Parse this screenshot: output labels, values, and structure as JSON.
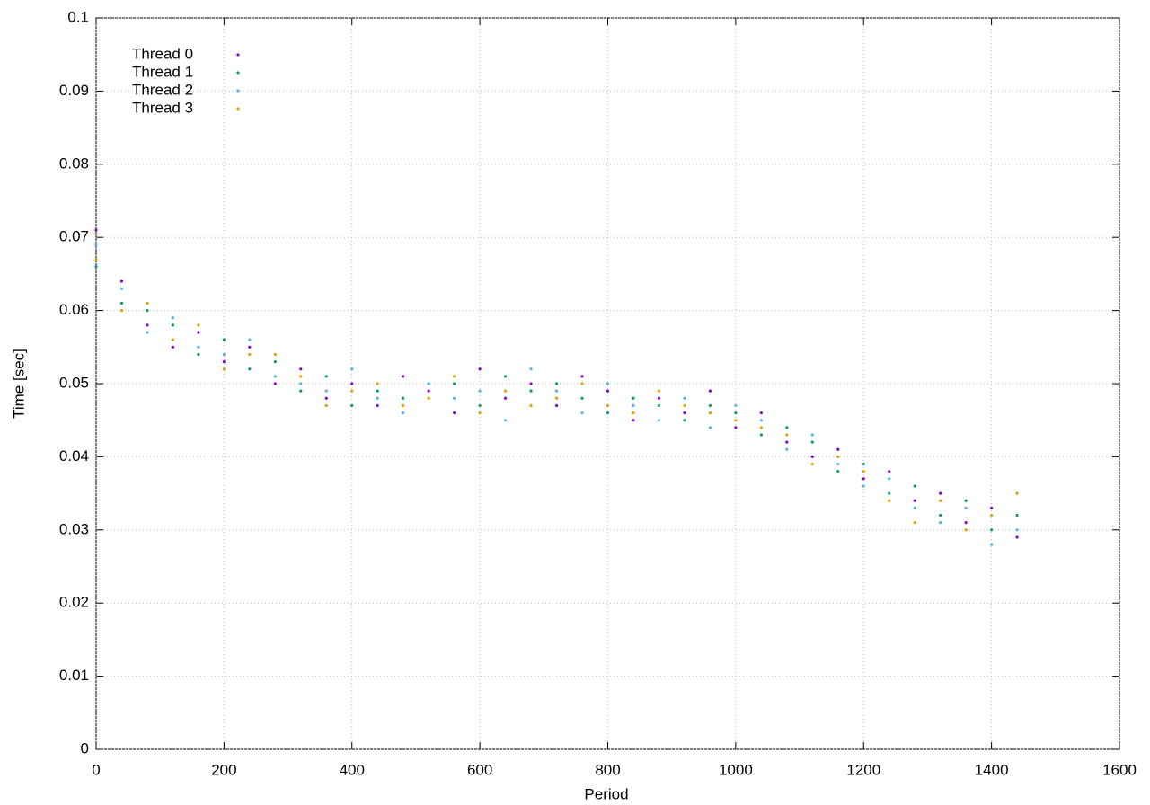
{
  "chart_data": {
    "type": "scatter",
    "xlabel": "Period",
    "ylabel": "Time [sec]",
    "xlim": [
      0,
      1600
    ],
    "xticks": [
      0,
      200,
      400,
      600,
      800,
      1000,
      1200,
      1400,
      1600
    ],
    "ylim": [
      0,
      0.1
    ],
    "yticks": [
      0,
      0.01,
      0.02,
      0.03,
      0.04,
      0.05,
      0.06,
      0.07,
      0.08,
      0.09,
      0.1
    ],
    "grid": true,
    "legend": "top-left",
    "x": [
      0,
      40,
      80,
      120,
      160,
      200,
      240,
      280,
      320,
      360,
      400,
      440,
      480,
      520,
      560,
      600,
      640,
      680,
      720,
      760,
      800,
      840,
      880,
      920,
      960,
      1000,
      1040,
      1080,
      1120,
      1160,
      1200,
      1240,
      1280,
      1320,
      1360,
      1400,
      1440
    ],
    "series": [
      {
        "name": "Thread 0",
        "color": "#9400d3",
        "values": [
          0.071,
          0.064,
          0.058,
          0.055,
          0.057,
          0.053,
          0.055,
          0.05,
          0.052,
          0.048,
          0.05,
          0.047,
          0.051,
          0.049,
          0.046,
          0.052,
          0.048,
          0.05,
          0.047,
          0.051,
          0.049,
          0.045,
          0.048,
          0.046,
          0.049,
          0.044,
          0.046,
          0.042,
          0.04,
          0.041,
          0.037,
          0.038,
          0.034,
          0.035,
          0.031,
          0.033,
          0.029
        ]
      },
      {
        "name": "Thread 1",
        "color": "#009e73",
        "values": [
          0.066,
          0.061,
          0.06,
          0.058,
          0.054,
          0.056,
          0.052,
          0.053,
          0.049,
          0.051,
          0.047,
          0.049,
          0.048,
          0.05,
          0.05,
          0.047,
          0.051,
          0.049,
          0.05,
          0.048,
          0.046,
          0.048,
          0.047,
          0.045,
          0.047,
          0.046,
          0.043,
          0.044,
          0.042,
          0.038,
          0.039,
          0.035,
          0.036,
          0.032,
          0.034,
          0.03,
          0.032
        ]
      },
      {
        "name": "Thread 2",
        "color": "#56b4e9",
        "values": [
          0.069,
          0.063,
          0.057,
          0.059,
          0.055,
          0.054,
          0.056,
          0.051,
          0.05,
          0.049,
          0.052,
          0.048,
          0.046,
          0.05,
          0.048,
          0.049,
          0.045,
          0.052,
          0.049,
          0.046,
          0.05,
          0.047,
          0.045,
          0.048,
          0.044,
          0.047,
          0.045,
          0.041,
          0.043,
          0.039,
          0.036,
          0.037,
          0.033,
          0.031,
          0.033,
          0.028,
          0.03
        ]
      },
      {
        "name": "Thread 3",
        "color": "#e69f00",
        "values": [
          0.067,
          0.06,
          0.061,
          0.056,
          0.058,
          0.052,
          0.054,
          0.054,
          0.051,
          0.047,
          0.049,
          0.05,
          0.047,
          0.048,
          0.051,
          0.046,
          0.049,
          0.047,
          0.048,
          0.05,
          0.047,
          0.046,
          0.049,
          0.047,
          0.046,
          0.045,
          0.044,
          0.043,
          0.039,
          0.04,
          0.038,
          0.034,
          0.031,
          0.034,
          0.03,
          0.032,
          0.035
        ]
      }
    ]
  }
}
